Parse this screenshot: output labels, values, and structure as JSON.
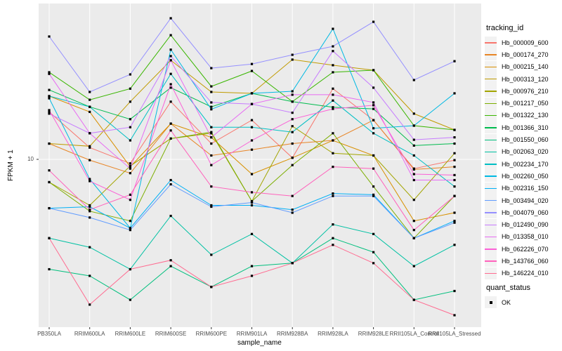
{
  "panel": {
    "bg_color": "#EBEBEB",
    "grid_color": "#FFFFFF",
    "tick_color": "#333333",
    "axis_text_color": "#4D4D4D",
    "point_color": "#000000"
  },
  "axes": {
    "y_title": "FPKM + 1",
    "x_title": "sample_name",
    "y_tick_label": "10"
  },
  "legend": {
    "title": "tracking_id",
    "quant_title": "quant_status",
    "quant_items": [
      "OK"
    ]
  },
  "chart_data": {
    "type": "line",
    "title": "",
    "xlabel": "sample_name",
    "ylabel": "FPKM + 1",
    "y_scale": "log10",
    "ylim": [
      1.25,
      70
    ],
    "y_ticks": [
      10
    ],
    "grid": "major",
    "legend_position": "right",
    "point_shape": "filled-square",
    "categories": [
      "PB350LA",
      "RRIM600LA",
      "RRIM600LE",
      "RRIM600SE",
      "RRIM600PE",
      "RRIM901LA",
      "RRIM928BA",
      "RRIM928LA",
      "RRIM928LE",
      "RRII105LA_Control",
      "RRII105LA_Stressed"
    ],
    "series": [
      {
        "name": "Hb_000009_600",
        "color": "#F8766D",
        "values": [
          18.2,
          11.6,
          9.5,
          20.7,
          12.2,
          16.4,
          10.2,
          24.4,
          16.4,
          8.9,
          9.9
        ]
      },
      {
        "name": "Hb_000174_270",
        "color": "#E88526",
        "values": [
          12.2,
          9.9,
          8.4,
          15.7,
          10.5,
          11.3,
          12.2,
          12.7,
          16.4,
          8.8,
          9.1
        ]
      },
      {
        "name": "Hb_000215_140",
        "color": "#D89000",
        "values": [
          22.2,
          18.2,
          9.1,
          15.7,
          13.2,
          8.3,
          10.2,
          12.7,
          10.5,
          4.6,
          5.1
        ]
      },
      {
        "name": "Hb_000313_120",
        "color": "#C09B00",
        "values": [
          12.2,
          11.8,
          20.7,
          34.9,
          23.4,
          23.0,
          35.2,
          32.8,
          30.8,
          17.8,
          14.5
        ]
      },
      {
        "name": "Hb_000976_210",
        "color": "#A3A500",
        "values": [
          7.5,
          5.6,
          9.2,
          13.0,
          13.9,
          5.9,
          15.2,
          10.8,
          10.5,
          6.0,
          10.8
        ]
      },
      {
        "name": "Hb_001217_050",
        "color": "#7CAE00",
        "values": [
          7.5,
          5.2,
          4.6,
          13.0,
          14.1,
          5.9,
          9.3,
          13.9,
          7.1,
          3.7,
          6.3
        ]
      },
      {
        "name": "Hb_001322_130",
        "color": "#39B600",
        "values": [
          30.0,
          21.2,
          24.4,
          47.9,
          25.1,
          30.5,
          20.7,
          30.0,
          30.8,
          15.3,
          14.5
        ]
      },
      {
        "name": "Hb_001366_310",
        "color": "#00BB4E",
        "values": [
          24.0,
          19.4,
          16.6,
          24.7,
          19.4,
          23.0,
          20.7,
          19.3,
          18.9,
          11.9,
          12.2
        ]
      },
      {
        "name": "Hb_001550_060",
        "color": "#00BF7D",
        "values": [
          2.5,
          2.3,
          1.7,
          2.6,
          2.0,
          2.6,
          2.7,
          3.7,
          3.1,
          1.7,
          1.9
        ]
      },
      {
        "name": "Hb_002063_020",
        "color": "#00C1A3",
        "values": [
          3.7,
          3.3,
          2.5,
          4.9,
          3.0,
          3.9,
          2.7,
          4.4,
          3.9,
          2.6,
          3.4
        ]
      },
      {
        "name": "Hb_002234_170",
        "color": "#00BFC4",
        "values": [
          22.2,
          19.4,
          12.7,
          29.4,
          15.0,
          15.0,
          14.1,
          21.0,
          13.9,
          10.5,
          7.1
        ]
      },
      {
        "name": "Hb_002260_050",
        "color": "#00B9E3",
        "values": [
          21.6,
          7.8,
          4.2,
          39.9,
          18.8,
          23.0,
          23.6,
          51.9,
          14.8,
          15.3,
          23.0
        ]
      },
      {
        "name": "Hb_002316_150",
        "color": "#00B0F6",
        "values": [
          5.4,
          5.5,
          4.2,
          7.7,
          5.6,
          5.6,
          5.3,
          6.5,
          6.4,
          3.7,
          4.6
        ]
      },
      {
        "name": "Hb_003494_020",
        "color": "#619CFF",
        "values": [
          5.4,
          4.8,
          4.1,
          7.3,
          5.5,
          5.8,
          5.1,
          6.3,
          6.3,
          3.7,
          4.5
        ]
      },
      {
        "name": "Hb_004079_060",
        "color": "#9590FF",
        "values": [
          47.1,
          23.4,
          29.2,
          59.3,
          31.6,
          33.3,
          37.4,
          41.6,
          56.7,
          27.2,
          34.5
        ]
      },
      {
        "name": "Hb_012490_090",
        "color": "#C77CFF",
        "values": [
          17.8,
          13.9,
          15.0,
          36.8,
          20.5,
          20.1,
          18.0,
          39.2,
          24.7,
          12.8,
          13.2
        ]
      },
      {
        "name": "Hb_013358_010",
        "color": "#E76BF3",
        "values": [
          29.4,
          13.9,
          8.9,
          34.9,
          13.2,
          20.1,
          22.6,
          22.6,
          20.5,
          7.7,
          7.7
        ]
      },
      {
        "name": "Hb_062226_070",
        "color": "#FB61D7",
        "values": [
          18.6,
          7.6,
          6.0,
          25.8,
          9.3,
          12.7,
          16.6,
          18.9,
          19.8,
          8.3,
          8.2
        ]
      },
      {
        "name": "Hb_143766_060",
        "color": "#FF62BC",
        "values": [
          8.7,
          5.3,
          6.4,
          14.4,
          7.1,
          6.6,
          6.3,
          9.1,
          8.9,
          4.1,
          6.3
        ]
      },
      {
        "name": "Hb_146224_010",
        "color": "#FF6C91",
        "values": [
          3.7,
          1.6,
          2.5,
          2.8,
          2.0,
          2.3,
          2.7,
          3.4,
          2.7,
          1.7,
          1.4
        ]
      }
    ]
  }
}
